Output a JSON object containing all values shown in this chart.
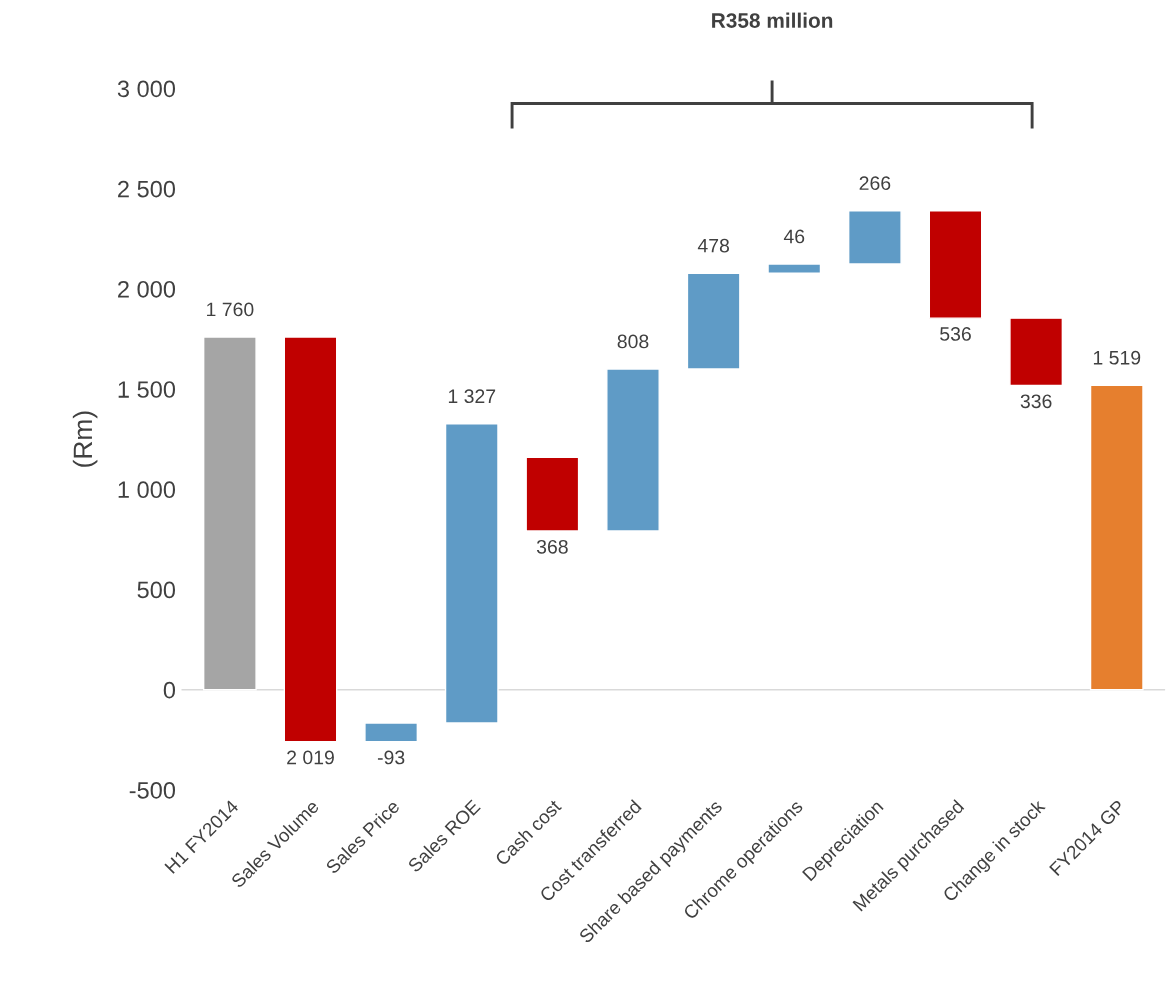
{
  "chart_data": {
    "type": "bar",
    "ylabel": "(Rm)",
    "categories": [
      "H1 FY2014",
      "Sales Volume",
      "Sales Price",
      "Sales ROE",
      "Cash cost",
      "Cost transferred",
      "Share based payments",
      "Chrome operations",
      "Depreciation",
      "Metals purchased",
      "Change in stock",
      "FY2014 GP"
    ],
    "base": [
      0,
      1760,
      -166,
      -166,
      1160,
      792,
      1600,
      2078,
      2124,
      2390,
      1854,
      0
    ],
    "values": [
      1760,
      -2019,
      -93,
      1493,
      -368,
      808,
      478,
      46,
      266,
      -536,
      -336,
      1519
    ],
    "value_labels": [
      "1 760",
      "2 019",
      "-93",
      "1 327",
      "368",
      "808",
      "478",
      "46",
      "266",
      "536",
      "336",
      "1 519"
    ],
    "colors": [
      "#a5a5a5",
      "#c00000",
      "#5f9bc6",
      "#5f9bc6",
      "#c00000",
      "#5f9bc6",
      "#5f9bc6",
      "#5f9bc6",
      "#5f9bc6",
      "#c00000",
      "#c00000",
      "#e67f2e"
    ],
    "ylim": [
      -500,
      3000
    ],
    "yticks": [
      {
        "value": -500,
        "label": "-500"
      },
      {
        "value": 0,
        "label": "0"
      },
      {
        "value": 500,
        "label": "500"
      },
      {
        "value": 1000,
        "label": "1 000"
      },
      {
        "value": 1500,
        "label": "1 500"
      },
      {
        "value": 2000,
        "label": "2 000"
      },
      {
        "value": 2500,
        "label": "2 500"
      },
      {
        "value": 3000,
        "label": "3 000"
      }
    ],
    "ref_lines": [
      {
        "axis": "y",
        "value": 0,
        "color": "#d9d9d9"
      }
    ],
    "annotations": [
      "R358 million"
    ],
    "grid": false,
    "legend": false
  }
}
